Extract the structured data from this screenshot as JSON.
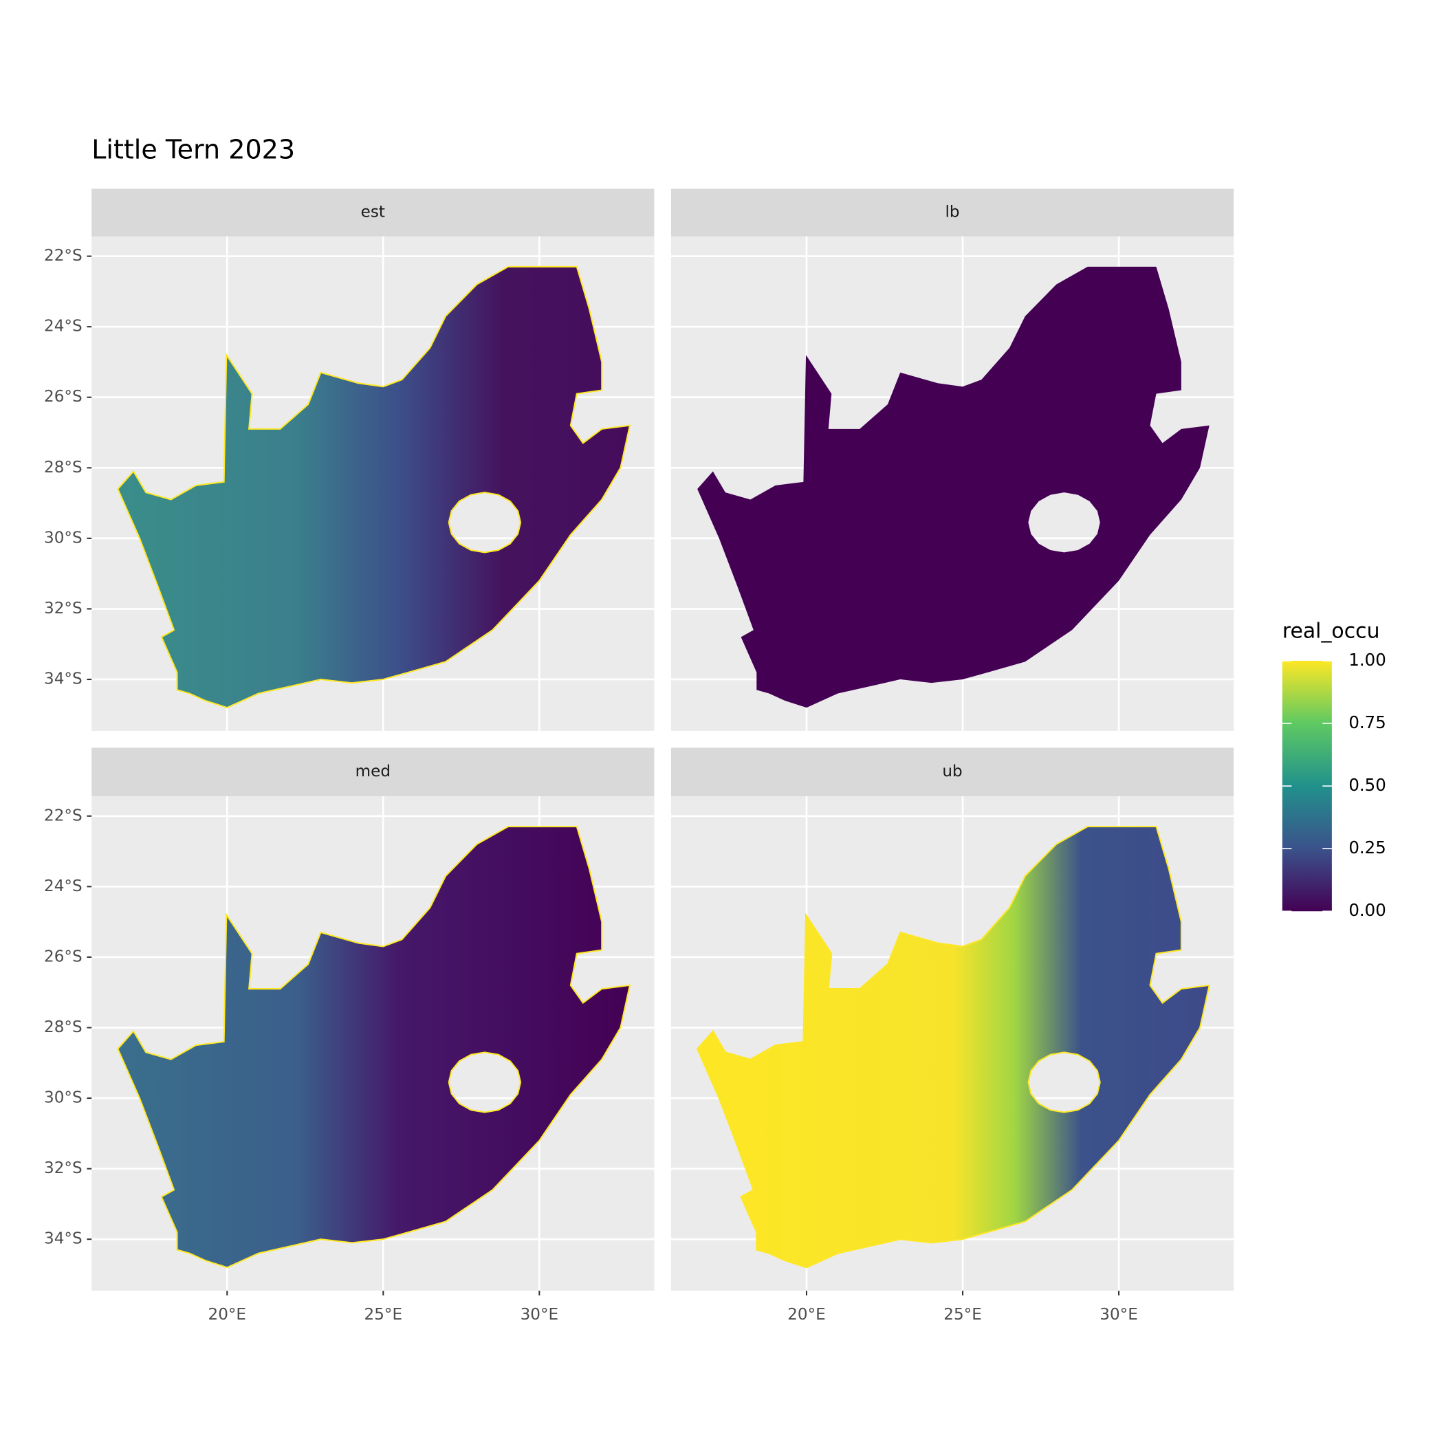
{
  "chart_data": {
    "type": "map",
    "title": "Little Tern 2023",
    "facets": [
      "est",
      "lb",
      "med",
      "ub"
    ],
    "xlim": [
      15.66,
      33.68
    ],
    "ylim": [
      -35.46,
      -21.44
    ],
    "xticks": [
      {
        "value": 20,
        "label": "20°E"
      },
      {
        "value": 25,
        "label": "25°E"
      },
      {
        "value": 30,
        "label": "30°E"
      }
    ],
    "yticks": [
      {
        "value": -22,
        "label": "22°S"
      },
      {
        "value": -24,
        "label": "24°S"
      },
      {
        "value": -26,
        "label": "26°S"
      },
      {
        "value": -28,
        "label": "28°S"
      },
      {
        "value": -30,
        "label": "30°S"
      },
      {
        "value": -32,
        "label": "32°S"
      },
      {
        "value": -34,
        "label": "34°S"
      }
    ],
    "grid": true,
    "legend": {
      "title": "real_occu",
      "lim": [
        0,
        1
      ],
      "ticks": [
        {
          "value": 0,
          "label": "0.00"
        },
        {
          "value": 0.25,
          "label": "0.25"
        },
        {
          "value": 0.5,
          "label": "0.50"
        },
        {
          "value": 0.75,
          "label": "0.75"
        },
        {
          "value": 1,
          "label": "1.00"
        }
      ],
      "colormap": [
        "#440154",
        "#3b528b",
        "#21918c",
        "#5ec962",
        "#fde725"
      ]
    }
  }
}
